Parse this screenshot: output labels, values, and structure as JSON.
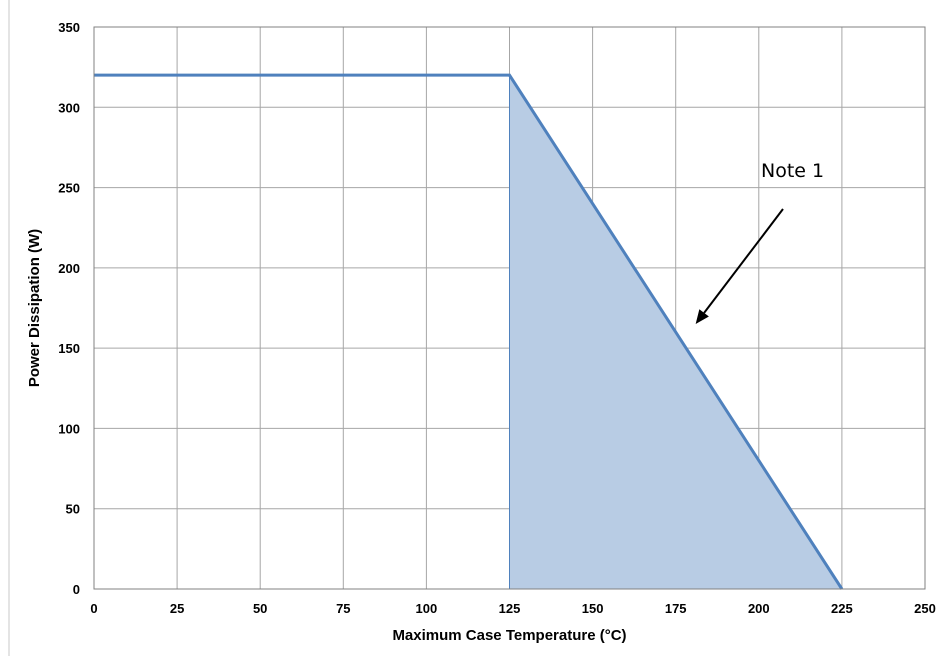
{
  "chart_data": {
    "type": "area",
    "xlabel": "Maximum Case Temperature (°C)",
    "ylabel": "Power Dissipation (W)",
    "xlim": [
      0,
      250
    ],
    "ylim": [
      0,
      350
    ],
    "xticks": [
      0,
      25,
      50,
      75,
      100,
      125,
      150,
      175,
      200,
      225,
      250
    ],
    "yticks": [
      0,
      50,
      100,
      150,
      200,
      250,
      300,
      350
    ],
    "grid": true,
    "series": [
      {
        "x": [
          0,
          125,
          225
        ],
        "y": [
          320,
          320,
          0
        ]
      }
    ],
    "shaded_region": {
      "x": [
        125,
        225
      ],
      "color": "#b8cce4"
    },
    "annotations": [
      {
        "text": "Note 1",
        "points_to": {
          "x": 181,
          "y": 165
        }
      }
    ],
    "colors": {
      "line": "#4f81bd",
      "fill": "#b8cce4",
      "grid": "#a6a6a6",
      "frame": "#808080"
    }
  }
}
